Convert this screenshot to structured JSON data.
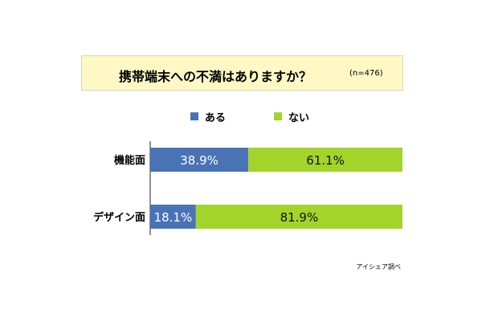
{
  "title": {
    "text": "携帯端末への不満はありますか？",
    "n_label": "(n=476)"
  },
  "legend": [
    {
      "label": "ある",
      "color": "#4a73b6"
    },
    {
      "label": "ない",
      "color": "#a3d42a"
    }
  ],
  "source": "アイシェア調べ",
  "chart_data": {
    "type": "bar",
    "orientation": "horizontal",
    "stacked": true,
    "percent": true,
    "title": "携帯端末への不満はありますか？",
    "subtitle": "(n=476)",
    "categories": [
      "機能面",
      "デザイン面"
    ],
    "series": [
      {
        "name": "ある",
        "values": [
          38.9,
          18.1
        ],
        "labels": [
          "38.9%",
          "18.1%"
        ],
        "color": "#4a73b6"
      },
      {
        "name": "ない",
        "values": [
          61.1,
          81.9
        ],
        "labels": [
          "61.1%",
          "81.9%"
        ],
        "color": "#a3d42a"
      }
    ],
    "xlim": [
      0,
      100
    ],
    "grid": false,
    "legend_position": "top-center"
  }
}
